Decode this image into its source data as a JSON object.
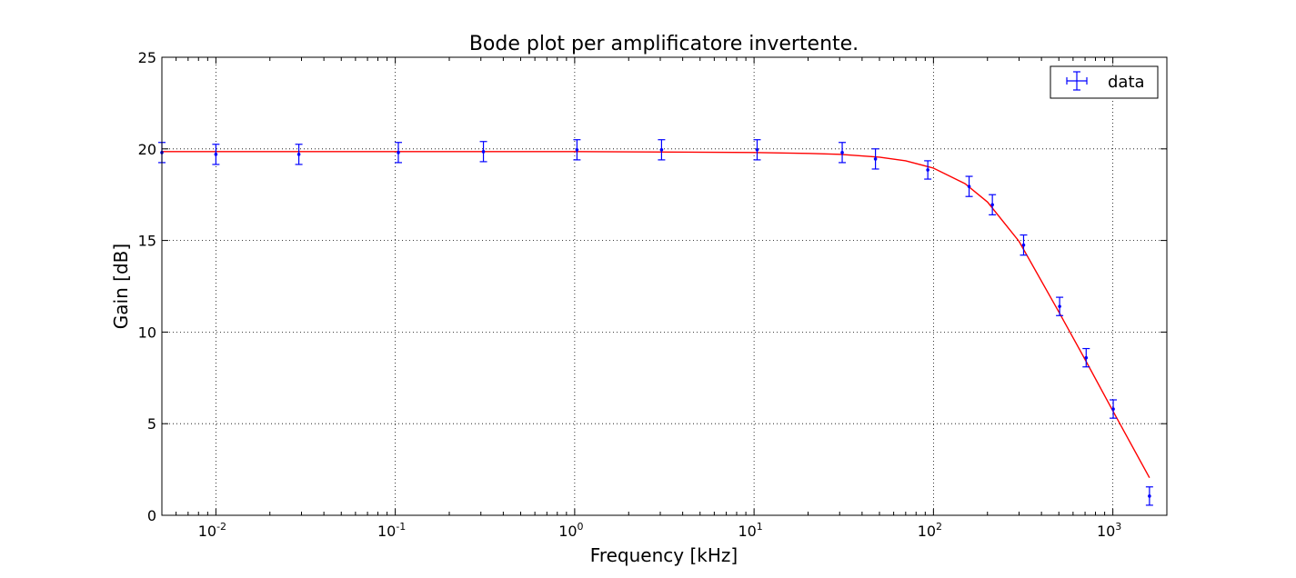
{
  "chart_data": {
    "type": "scatter",
    "title": "Bode plot per amplificatore invertente.",
    "xlabel": "Frequency [kHz]",
    "ylabel": "Gain [dB]",
    "xscale": "log",
    "xlim": [
      0.005,
      2000
    ],
    "ylim": [
      0,
      25
    ],
    "grid": true,
    "legend_position": "top-right",
    "x_ticks": [
      {
        "value": 0.01,
        "base": "10",
        "exp": "-2"
      },
      {
        "value": 0.1,
        "base": "10",
        "exp": "-1"
      },
      {
        "value": 1,
        "base": "10",
        "exp": "0"
      },
      {
        "value": 10,
        "base": "10",
        "exp": "1"
      },
      {
        "value": 100,
        "base": "10",
        "exp": "2"
      },
      {
        "value": 1000,
        "base": "10",
        "exp": "3"
      }
    ],
    "y_ticks": [
      "0",
      "5",
      "10",
      "15",
      "20",
      "25"
    ],
    "series": [
      {
        "name": "data",
        "kind": "errorbar",
        "color": "#0000ff",
        "x": [
          0.005,
          0.01,
          0.029,
          0.104,
          0.31,
          1.03,
          3.05,
          10.4,
          31,
          47.5,
          93,
          158,
          213,
          318,
          505,
          710,
          1005,
          1600
        ],
        "y": [
          19.8,
          19.7,
          19.7,
          19.8,
          19.85,
          19.95,
          19.95,
          19.95,
          19.8,
          19.45,
          18.85,
          17.95,
          16.95,
          14.75,
          11.4,
          8.6,
          5.8,
          1.05
        ],
        "yerr": [
          0.55,
          0.55,
          0.55,
          0.55,
          0.55,
          0.55,
          0.55,
          0.55,
          0.55,
          0.55,
          0.5,
          0.55,
          0.55,
          0.55,
          0.5,
          0.5,
          0.5,
          0.5
        ]
      },
      {
        "kind": "fit",
        "color": "#ff0000",
        "x": [
          0.005,
          0.01,
          0.1,
          1,
          10,
          20,
          30,
          50,
          70,
          100,
          150,
          200,
          300,
          500,
          700,
          1000,
          1600
        ],
        "y": [
          19.85,
          19.85,
          19.85,
          19.85,
          19.8,
          19.75,
          19.7,
          19.55,
          19.35,
          18.95,
          18.1,
          17.1,
          14.95,
          11.1,
          8.5,
          5.7,
          2.05
        ]
      }
    ]
  }
}
